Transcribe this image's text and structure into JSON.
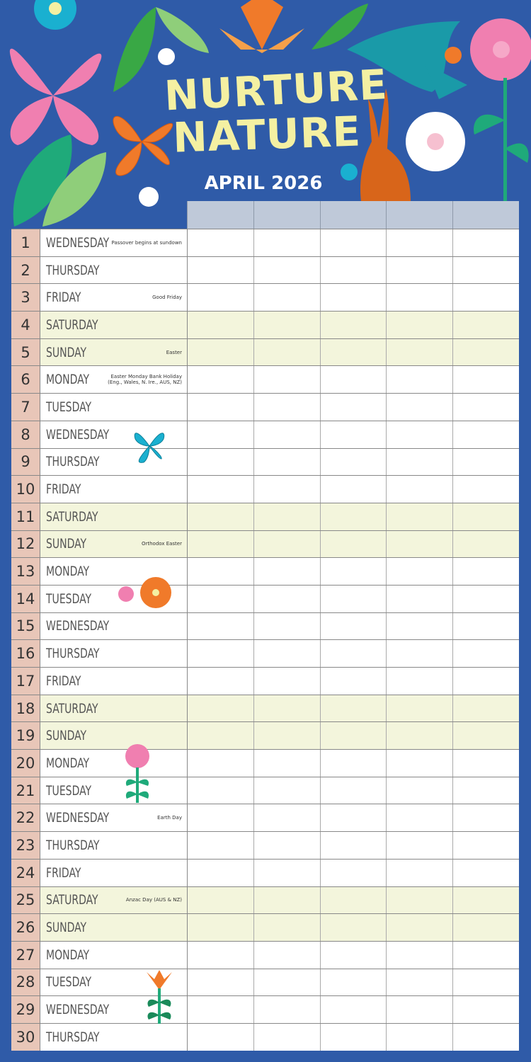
{
  "header": {
    "title_line1": "NURTURE",
    "title_line2": "NATURE",
    "month": "APRIL 2026"
  },
  "colors": {
    "background": "#2f5ba8",
    "title": "#f4f0a2",
    "weekend_row": "#f3f5dc",
    "date_cell": "#e8c6b8",
    "column_header": "#bfc9d9"
  },
  "column_count": 5,
  "days": [
    {
      "num": "1",
      "name": "WEDNESDAY",
      "note": "Passover begins at sundown"
    },
    {
      "num": "2",
      "name": "THURSDAY",
      "note": ""
    },
    {
      "num": "3",
      "name": "FRIDAY",
      "note": "Good Friday"
    },
    {
      "num": "4",
      "name": "SATURDAY",
      "note": "",
      "weekend": true
    },
    {
      "num": "5",
      "name": "SUNDAY",
      "note": "Easter",
      "weekend": true
    },
    {
      "num": "6",
      "name": "MONDAY",
      "note": "Easter Monday Bank Holiday\n(Eng., Wales, N. Ire., AUS, NZ)"
    },
    {
      "num": "7",
      "name": "TUESDAY",
      "note": ""
    },
    {
      "num": "8",
      "name": "WEDNESDAY",
      "note": ""
    },
    {
      "num": "9",
      "name": "THURSDAY",
      "note": ""
    },
    {
      "num": "10",
      "name": "FRIDAY",
      "note": ""
    },
    {
      "num": "11",
      "name": "SATURDAY",
      "note": "",
      "weekend": true
    },
    {
      "num": "12",
      "name": "SUNDAY",
      "note": "Orthodox Easter",
      "weekend": true
    },
    {
      "num": "13",
      "name": "MONDAY",
      "note": ""
    },
    {
      "num": "14",
      "name": "TUESDAY",
      "note": ""
    },
    {
      "num": "15",
      "name": "WEDNESDAY",
      "note": ""
    },
    {
      "num": "16",
      "name": "THURSDAY",
      "note": ""
    },
    {
      "num": "17",
      "name": "FRIDAY",
      "note": ""
    },
    {
      "num": "18",
      "name": "SATURDAY",
      "note": "",
      "weekend": true
    },
    {
      "num": "19",
      "name": "SUNDAY",
      "note": "",
      "weekend": true
    },
    {
      "num": "20",
      "name": "MONDAY",
      "note": ""
    },
    {
      "num": "21",
      "name": "TUESDAY",
      "note": ""
    },
    {
      "num": "22",
      "name": "WEDNESDAY",
      "note": "Earth Day"
    },
    {
      "num": "23",
      "name": "THURSDAY",
      "note": ""
    },
    {
      "num": "24",
      "name": "FRIDAY",
      "note": ""
    },
    {
      "num": "25",
      "name": "SATURDAY",
      "note": "Anzac Day (AUS & NZ)",
      "weekend": true
    },
    {
      "num": "26",
      "name": "SUNDAY",
      "note": "",
      "weekend": true
    },
    {
      "num": "27",
      "name": "MONDAY",
      "note": ""
    },
    {
      "num": "28",
      "name": "TUESDAY",
      "note": ""
    },
    {
      "num": "29",
      "name": "WEDNESDAY",
      "note": ""
    },
    {
      "num": "30",
      "name": "THURSDAY",
      "note": ""
    }
  ]
}
